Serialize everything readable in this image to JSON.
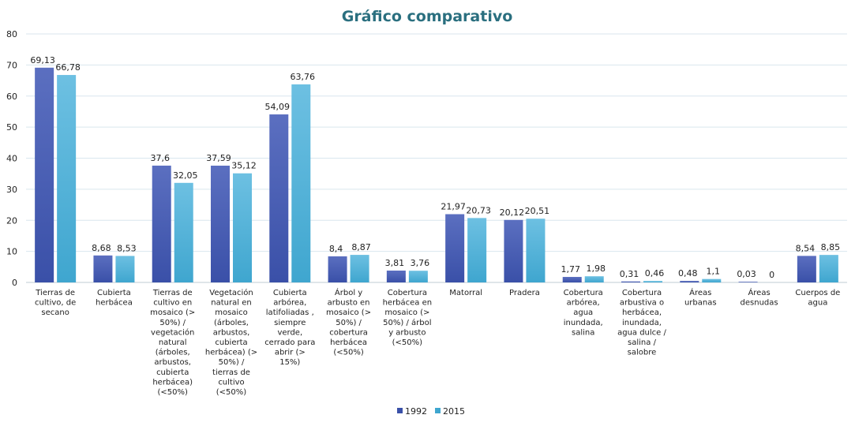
{
  "chart_data": {
    "type": "bar",
    "title": "Gráfico comparativo",
    "xlabel": "",
    "ylabel": "",
    "ylim": [
      0,
      80
    ],
    "yticks": [
      "0",
      "10",
      "20",
      "30",
      "40",
      "50",
      "60",
      "70",
      "80"
    ],
    "grid": true,
    "legend_position": "bottom",
    "categories": [
      "Tierras de cultivo, de secano",
      "Cubierta herbácea",
      "Tierras de cultivo en mosaico (> 50%) / vegetación natural (árboles, arbustos, cubierta herbácea) (<50%)",
      "Vegetación natural en mosaico (árboles, arbustos, cubierta herbácea) (> 50%) / tierras de cultivo (<50%)",
      "Cubierta arbórea, latifoliadas , siempre verde, cerrado para abrir (> 15%)",
      "Árbol y arbusto en mosaico (> 50%) / cobertura herbácea (<50%)",
      "Cobertura herbácea en mosaico (> 50%) / árbol y arbusto (<50%)",
      "Matorral",
      "Pradera",
      "Cobertura arbórea, agua inundada, salina",
      "Cobertura arbustiva o herbácea, inundada, agua dulce / salina / salobre",
      "Áreas urbanas",
      "Áreas desnudas",
      "Cuerpos de agua"
    ],
    "category_lines": [
      [
        "Tierras de",
        "cultivo, de",
        "secano"
      ],
      [
        "Cubierta",
        "herbácea"
      ],
      [
        "Tierras de",
        "cultivo en",
        "mosaico (>",
        "50%) /",
        "vegetación",
        "natural",
        "(árboles,",
        "arbustos,",
        "cubierta",
        "herbácea)",
        "(<50%)"
      ],
      [
        "Vegetación",
        "natural en",
        "mosaico",
        "(árboles,",
        "arbustos,",
        "cubierta",
        "herbácea) (>",
        "50%) /",
        "tierras de",
        "cultivo",
        "(<50%)"
      ],
      [
        "Cubierta",
        "arbórea,",
        "latifoliadas ,",
        "siempre",
        "verde,",
        "cerrado para",
        "abrir (>",
        "15%)"
      ],
      [
        "Árbol y",
        "arbusto en",
        "mosaico (>",
        "50%) /",
        "cobertura",
        "herbácea",
        "(<50%)"
      ],
      [
        "Cobertura",
        "herbácea en",
        "mosaico (>",
        "50%) / árbol",
        "y arbusto",
        "(<50%)"
      ],
      [
        "Matorral"
      ],
      [
        "Pradera"
      ],
      [
        "Cobertura",
        "arbórea,",
        "agua",
        "inundada,",
        "salina"
      ],
      [
        "Cobertura",
        "arbustiva o",
        "herbácea,",
        "inundada,",
        "agua dulce /",
        "salina /",
        "salobre"
      ],
      [
        "Áreas",
        "urbanas"
      ],
      [
        "Áreas",
        "desnudas"
      ],
      [
        "Cuerpos de",
        "agua"
      ]
    ],
    "series": [
      {
        "name": "1992",
        "color": "#3a50a8",
        "color_light": "#5b6fc0",
        "values": [
          69.13,
          8.68,
          37.6,
          37.59,
          54.09,
          8.4,
          3.81,
          21.97,
          20.12,
          1.77,
          0.31,
          0.48,
          0.03,
          8.54
        ],
        "labels": [
          "69,13",
          "8,68",
          "37,6",
          "37,59",
          "54,09",
          "8,4",
          "3,81",
          "21,97",
          "20,12",
          "1,77",
          "0,31",
          "0,48",
          "0,03",
          "8,54"
        ]
      },
      {
        "name": "2015",
        "color": "#3fa6cf",
        "color_light": "#6dc0e2",
        "values": [
          66.78,
          8.53,
          32.05,
          35.12,
          63.76,
          8.87,
          3.76,
          20.73,
          20.51,
          1.98,
          0.46,
          1.1,
          0,
          8.85
        ],
        "labels": [
          "66,78",
          "8,53",
          "32,05",
          "35,12",
          "63,76",
          "8,87",
          "3,76",
          "20,73",
          "20,51",
          "1,98",
          "0,46",
          "1,1",
          "0",
          "8,85"
        ]
      }
    ]
  }
}
